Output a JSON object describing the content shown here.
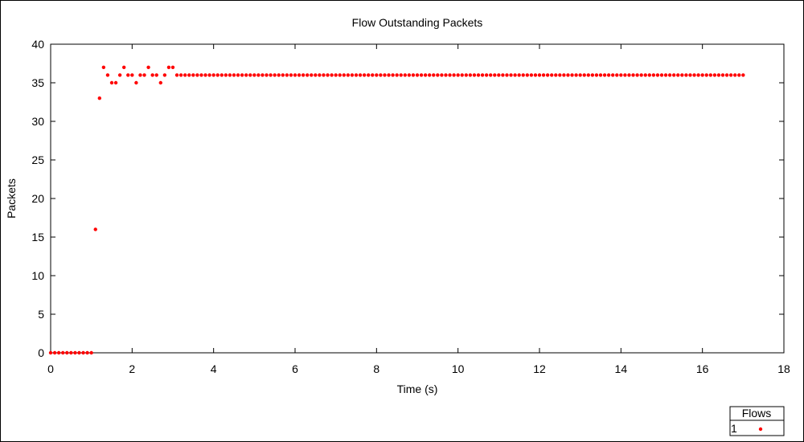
{
  "chart_data": {
    "type": "scatter",
    "title": "Flow Outstanding Packets",
    "xlabel": "Time (s)",
    "ylabel": "Packets",
    "xlim": [
      0,
      18
    ],
    "ylim": [
      0,
      40
    ],
    "xticks": [
      0,
      2,
      4,
      6,
      8,
      10,
      12,
      14,
      16,
      18
    ],
    "yticks": [
      0,
      5,
      10,
      15,
      20,
      25,
      30,
      35,
      40
    ],
    "grid": false,
    "legend": {
      "title": "Flows",
      "placement": "bottom-right-outside",
      "entries": [
        "1"
      ]
    },
    "series": [
      {
        "name": "1",
        "color": "#ff0000",
        "x": [
          0,
          0.1,
          0.2,
          0.3,
          0.4,
          0.5,
          0.6,
          0.7,
          0.8,
          0.9,
          1.0,
          1.1,
          1.2,
          1.3,
          1.4,
          1.5,
          1.6,
          1.7,
          1.8,
          1.9,
          2.0,
          2.1,
          2.2,
          2.3,
          2.4,
          2.5,
          2.6,
          2.7,
          2.8,
          2.9,
          3.0,
          3.1,
          3.2,
          3.3,
          3.4,
          3.5,
          3.6,
          3.7,
          3.8,
          3.9,
          4.0,
          4.1,
          4.2,
          4.3,
          4.4,
          4.5,
          4.6,
          4.7,
          4.8,
          4.9,
          5.0,
          5.1,
          5.2,
          5.3,
          5.4,
          5.5,
          5.6,
          5.7,
          5.8,
          5.9,
          6.0,
          6.1,
          6.2,
          6.3,
          6.4,
          6.5,
          6.6,
          6.7,
          6.8,
          6.9,
          7.0,
          7.1,
          7.2,
          7.3,
          7.4,
          7.5,
          7.6,
          7.7,
          7.8,
          7.9,
          8.0,
          8.1,
          8.2,
          8.3,
          8.4,
          8.5,
          8.6,
          8.7,
          8.8,
          8.9,
          9.0,
          9.1,
          9.2,
          9.3,
          9.4,
          9.5,
          9.6,
          9.7,
          9.8,
          9.9,
          10.0,
          10.1,
          10.2,
          10.3,
          10.4,
          10.5,
          10.6,
          10.7,
          10.8,
          10.9,
          11.0,
          11.1,
          11.2,
          11.3,
          11.4,
          11.5,
          11.6,
          11.7,
          11.8,
          11.9,
          12.0,
          12.1,
          12.2,
          12.3,
          12.4,
          12.5,
          12.6,
          12.7,
          12.8,
          12.9,
          13.0,
          13.1,
          13.2,
          13.3,
          13.4,
          13.5,
          13.6,
          13.7,
          13.8,
          13.9,
          14.0,
          14.1,
          14.2,
          14.3,
          14.4,
          14.5,
          14.6,
          14.7,
          14.8,
          14.9,
          15.0,
          15.1,
          15.2,
          15.3,
          15.4,
          15.5,
          15.6,
          15.7,
          15.8,
          15.9,
          16.0,
          16.1,
          16.2,
          16.3,
          16.4,
          16.5,
          16.6,
          16.7,
          16.8,
          16.9,
          17.0
        ],
        "y": [
          0,
          0,
          0,
          0,
          0,
          0,
          0,
          0,
          0,
          0,
          0,
          16,
          33,
          37,
          36,
          35,
          35,
          36,
          37,
          36,
          36,
          35,
          36,
          36,
          37,
          36,
          36,
          35,
          36,
          37,
          37,
          36,
          36,
          36,
          36,
          36,
          36,
          36,
          36,
          36,
          36,
          36,
          36,
          36,
          36,
          36,
          36,
          36,
          36,
          36,
          36,
          36,
          36,
          36,
          36,
          36,
          36,
          36,
          36,
          36,
          36,
          36,
          36,
          36,
          36,
          36,
          36,
          36,
          36,
          36,
          36,
          36,
          36,
          36,
          36,
          36,
          36,
          36,
          36,
          36,
          36,
          36,
          36,
          36,
          36,
          36,
          36,
          36,
          36,
          36,
          36,
          36,
          36,
          36,
          36,
          36,
          36,
          36,
          36,
          36,
          36,
          36,
          36,
          36,
          36,
          36,
          36,
          36,
          36,
          36,
          36,
          36,
          36,
          36,
          36,
          36,
          36,
          36,
          36,
          36,
          36,
          36,
          36,
          36,
          36,
          36,
          36,
          36,
          36,
          36,
          36,
          36,
          36,
          36,
          36,
          36,
          36,
          36,
          36,
          36,
          36,
          36,
          36,
          36,
          36,
          36,
          36,
          36,
          36,
          36,
          36,
          36,
          36,
          36,
          36,
          36,
          36,
          36,
          36,
          36,
          36,
          36,
          36,
          36,
          36,
          36,
          36,
          36,
          36,
          36,
          36
        ]
      }
    ]
  }
}
